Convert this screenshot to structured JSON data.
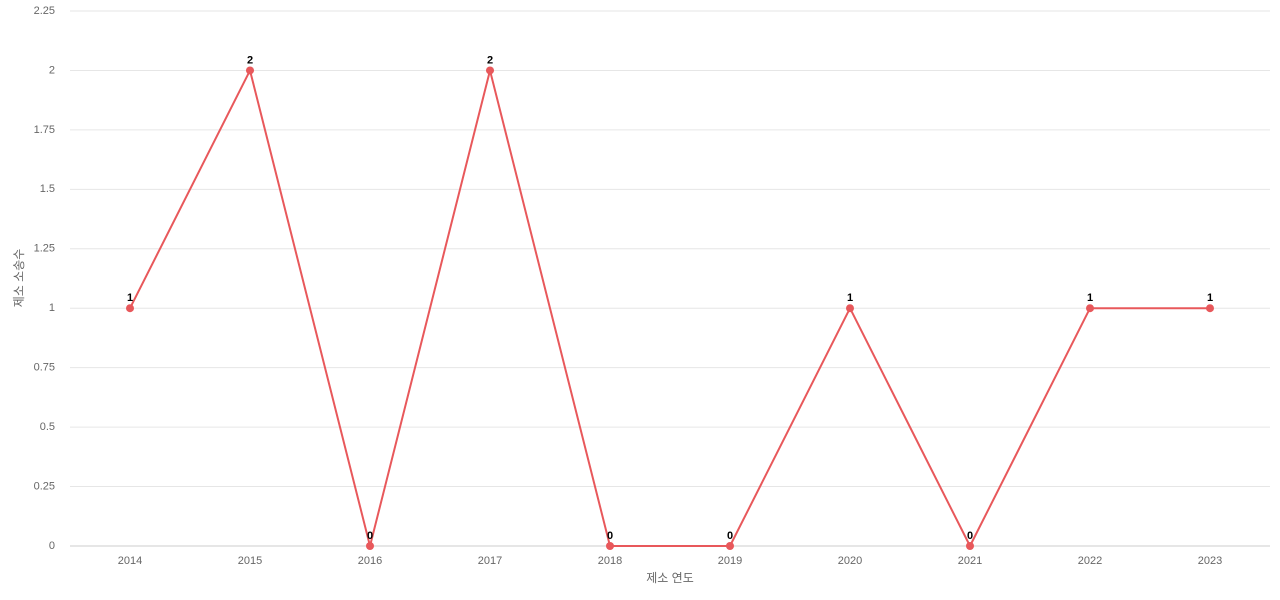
{
  "chart_data": {
    "type": "line",
    "x_label": "제소 연도",
    "y_label": "제소 소송수",
    "categories": [
      "2014",
      "2015",
      "2016",
      "2017",
      "2018",
      "2019",
      "2020",
      "2021",
      "2022",
      "2023"
    ],
    "series": [
      {
        "name": "제소 소송수",
        "color": "#e8585b",
        "values": [
          1,
          2,
          0,
          2,
          0,
          0,
          1,
          0,
          1,
          1
        ]
      }
    ],
    "ylim": [
      0,
      2.25
    ],
    "yticks": [
      0,
      0.25,
      0.5,
      0.75,
      1,
      1.25,
      1.5,
      1.75,
      2,
      2.25
    ],
    "grid": true,
    "data_labels": true
  }
}
